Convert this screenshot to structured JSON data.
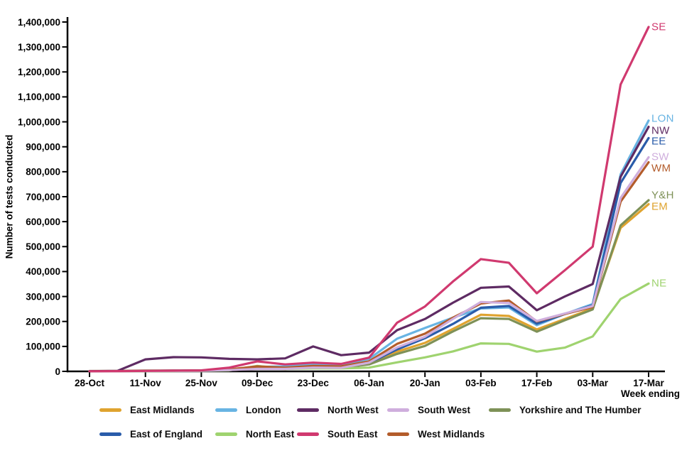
{
  "chart_data": {
    "type": "line",
    "title": "",
    "ylabel": "Number of tests conducted",
    "xlabel": "Week ending",
    "ylim": [
      0,
      1400000
    ],
    "ytick_step": 100000,
    "grid": false,
    "legend_position": "bottom",
    "x": [
      "28-Oct",
      "04-Nov",
      "11-Nov",
      "18-Nov",
      "25-Nov",
      "02-Dec",
      "09-Dec",
      "16-Dec",
      "23-Dec",
      "30-Dec",
      "06-Jan",
      "13-Jan",
      "20-Jan",
      "27-Jan",
      "03-Feb",
      "10-Feb",
      "17-Feb",
      "24-Feb",
      "03-Mar",
      "10-Mar",
      "17-Mar"
    ],
    "x_tick_labels": [
      "28-Oct",
      "11-Nov",
      "25-Nov",
      "09-Dec",
      "23-Dec",
      "06-Jan",
      "20-Jan",
      "03-Feb",
      "17-Feb",
      "03-Mar",
      "17-Mar"
    ],
    "series": [
      {
        "name": "East Midlands",
        "end_label": "EM",
        "color": "#dfa32f",
        "values": [
          500,
          1000,
          2000,
          2500,
          3000,
          5000,
          12000,
          10000,
          15000,
          14000,
          30000,
          79000,
          114000,
          170000,
          227000,
          222000,
          168000,
          210000,
          252000,
          575000,
          670000
        ]
      },
      {
        "name": "London",
        "end_label": "LON",
        "color": "#68b4e3",
        "values": [
          500,
          1000,
          2000,
          3000,
          4000,
          8000,
          18000,
          20000,
          28000,
          25000,
          50000,
          131000,
          174000,
          215000,
          252000,
          256000,
          185000,
          230000,
          270000,
          790000,
          1005000
        ]
      },
      {
        "name": "North West",
        "end_label": "NW",
        "color": "#5e2b63",
        "values": [
          500,
          2000,
          48000,
          57000,
          56000,
          50000,
          48000,
          52000,
          100000,
          65000,
          75000,
          165000,
          210000,
          275000,
          335000,
          340000,
          245000,
          300000,
          350000,
          780000,
          980000
        ]
      },
      {
        "name": "South West",
        "end_label": "SW",
        "color": "#cfaedd",
        "values": [
          500,
          1000,
          1500,
          2000,
          2500,
          5000,
          10000,
          10000,
          15000,
          14000,
          35000,
          96000,
          139000,
          210000,
          278000,
          274000,
          202000,
          232000,
          262000,
          695000,
          858000
        ]
      },
      {
        "name": "Yorkshire and The Humber",
        "end_label": "Y&H",
        "color": "#7e9157",
        "values": [
          1500,
          2000,
          3000,
          3000,
          3500,
          6000,
          15000,
          12000,
          16000,
          15000,
          28000,
          70000,
          102000,
          160000,
          213000,
          210000,
          159000,
          205000,
          248000,
          585000,
          686000
        ]
      },
      {
        "name": "East of England",
        "end_label": "EE",
        "color": "#2a5caa",
        "values": [
          500,
          1000,
          2000,
          2500,
          3000,
          6000,
          13000,
          12000,
          18000,
          16000,
          33000,
          88000,
          133000,
          190000,
          255000,
          262000,
          191000,
          230000,
          265000,
          755000,
          935000
        ]
      },
      {
        "name": "North East",
        "end_label": "NE",
        "color": "#9fd36f",
        "values": [
          500,
          1000,
          1000,
          1500,
          2000,
          4000,
          22000,
          10000,
          12000,
          12000,
          15000,
          36000,
          56000,
          80000,
          112000,
          110000,
          79000,
          95000,
          140000,
          290000,
          352000
        ]
      },
      {
        "name": "South East",
        "end_label": "SE",
        "color": "#d0396f",
        "values": [
          500,
          1000,
          2000,
          3000,
          4000,
          15000,
          40000,
          28000,
          35000,
          30000,
          55000,
          195000,
          260000,
          360000,
          450000,
          435000,
          313000,
          405000,
          500000,
          1150000,
          1380000
        ]
      },
      {
        "name": "West Midlands",
        "end_label": "WM",
        "color": "#b35c2b",
        "values": [
          500,
          1000,
          2000,
          2500,
          3000,
          8000,
          20000,
          15000,
          22000,
          20000,
          40000,
          110000,
          151000,
          215000,
          272000,
          284000,
          200000,
          230000,
          258000,
          680000,
          838000
        ]
      }
    ],
    "draw_order": [
      "East Midlands",
      "London",
      "East of England",
      "Yorkshire and The Humber",
      "North East",
      "West Midlands",
      "South West",
      "North West",
      "South East"
    ],
    "legend_rows": [
      [
        "East Midlands",
        "London",
        "North West",
        "South West",
        "Yorkshire and The Humber"
      ],
      [
        "East of England",
        "North East",
        "South East",
        "West Midlands"
      ]
    ]
  }
}
